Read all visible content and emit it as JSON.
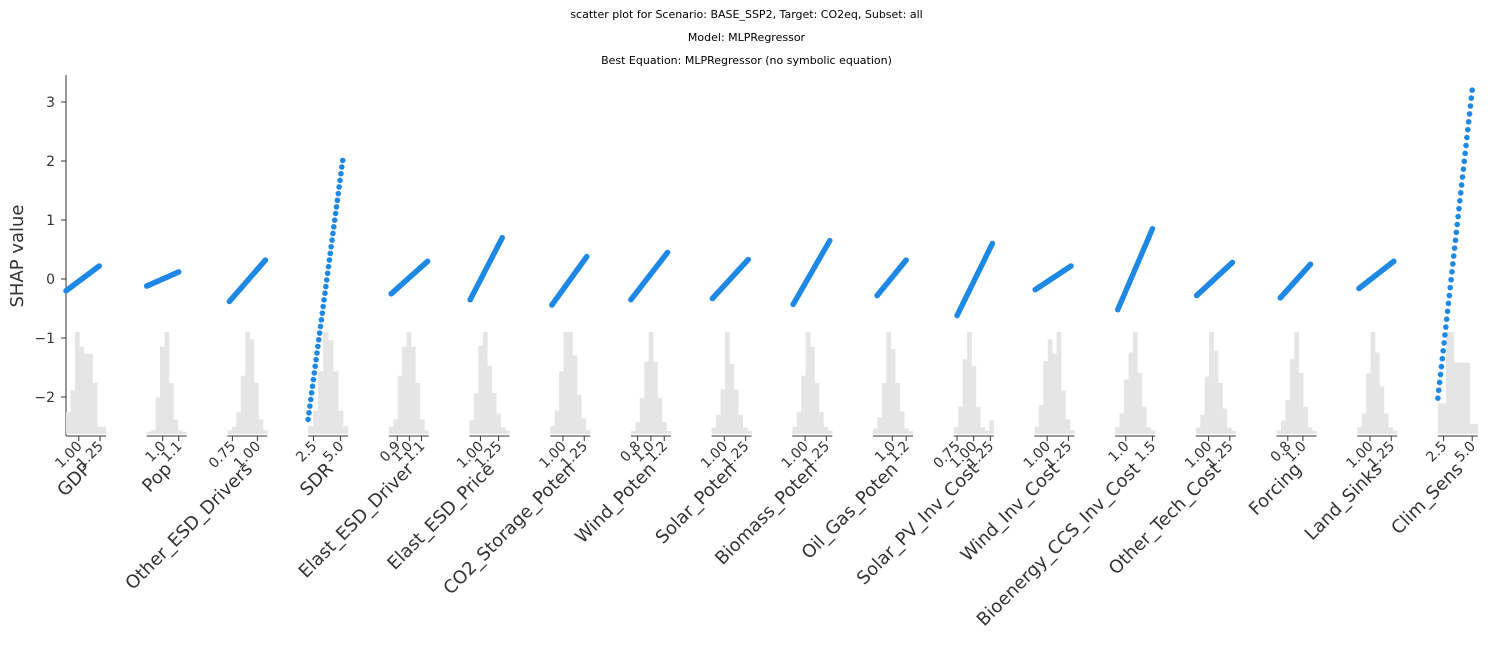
{
  "titles": {
    "line1": "scatter plot for Scenario: BASE_SSP2, Target: CO2eq, Subset: all",
    "line2": "Model: MLPRegressor",
    "line3": "Best Equation: MLPRegressor (no symbolic equation)"
  },
  "colors": {
    "points": "#1e88e5",
    "hist": "#e5e5e5",
    "axis": "#333333"
  },
  "chart_data": {
    "type": "scatter",
    "title": "scatter plot for Scenario: BASE_SSP2, Target: CO2eq, Subset: all",
    "subtitle": [
      "Model: MLPRegressor",
      "Best Equation: MLPRegressor (no symbolic equation)"
    ],
    "ylabel": "SHAP value",
    "ylim": [
      -2.65,
      3.45
    ],
    "yticks": [
      -2,
      -1,
      0,
      1,
      2,
      3
    ],
    "yticklabels": [
      "−2",
      "−1",
      "0",
      "1",
      "2",
      "3"
    ],
    "grid": false,
    "panels": [
      {
        "feature": "GDP",
        "xlim": [
          0.85,
          1.32
        ],
        "ticks": [
          1.0,
          1.25
        ],
        "ticklabels": [
          "1.00",
          "1.25"
        ],
        "shap_range": [
          -0.2,
          0.22
        ],
        "x_range": [
          0.85,
          1.24
        ],
        "hist": [
          3,
          6,
          14,
          12,
          11,
          11,
          7,
          1,
          1
        ]
      },
      {
        "feature": "Pop",
        "xlim": [
          0.9,
          1.15
        ],
        "ticks": [
          1.0,
          1.1
        ],
        "ticklabels": [
          "1.0",
          "1.1"
        ],
        "shap_range": [
          -0.12,
          0.12
        ],
        "x_range": [
          0.9,
          1.1
        ],
        "hist": [
          0.3,
          0.5,
          5,
          12,
          14,
          7,
          2,
          0.5,
          0.3
        ]
      },
      {
        "feature": "Other_ESD_Drivers",
        "xlim": [
          0.7,
          1.1
        ],
        "ticks": [
          0.75,
          1.0
        ],
        "ticklabels": [
          "0.75",
          "1.00"
        ],
        "shap_range": [
          -0.38,
          0.32
        ],
        "x_range": [
          0.72,
          1.08
        ],
        "hist": [
          0.5,
          1,
          3,
          8,
          14,
          13,
          7,
          2,
          0.5
        ]
      },
      {
        "feature": "SDR",
        "xlim": [
          2.0,
          5.7
        ],
        "ticks": [
          2.5,
          5.0
        ],
        "ticklabels": [
          "2.5",
          "5.0"
        ],
        "shap_range": [
          -2.38,
          2.01
        ],
        "x_range": [
          2.0,
          5.2
        ],
        "hist": [
          1,
          3,
          8,
          13,
          12,
          8,
          3,
          1
        ]
      },
      {
        "feature": "Elast_ESD_Driver",
        "xlim": [
          0.83,
          1.16
        ],
        "ticks": [
          0.9,
          1.0,
          1.1
        ],
        "ticklabels": [
          "0.9",
          "1.0",
          "1.1"
        ],
        "shap_range": [
          -0.25,
          0.3
        ],
        "x_range": [
          0.85,
          1.15
        ],
        "hist": [
          1,
          2,
          8,
          12,
          14,
          12,
          7,
          2,
          0.5
        ]
      },
      {
        "feature": "Elast_ESD_Price",
        "xlim": [
          0.85,
          1.4
        ],
        "ticks": [
          1.0,
          1.25
        ],
        "ticklabels": [
          "1.00",
          "1.25"
        ],
        "shap_range": [
          -0.35,
          0.7
        ],
        "x_range": [
          0.86,
          1.3
        ],
        "hist": [
          2,
          6,
          13,
          15,
          10,
          6,
          3,
          1,
          0.5
        ]
      },
      {
        "feature": "CO2_Storage_Poten",
        "xlim": [
          0.85,
          1.32
        ],
        "ticks": [
          1.0,
          1.25
        ],
        "ticklabels": [
          "1.00",
          "1.25"
        ],
        "shap_range": [
          -0.44,
          0.38
        ],
        "x_range": [
          0.87,
          1.28
        ],
        "hist": [
          1,
          3,
          8,
          13,
          13,
          10,
          5,
          2,
          0.5
        ]
      },
      {
        "feature": "Wind_Poten",
        "xlim": [
          0.7,
          1.3
        ],
        "ticks": [
          0.8,
          1.0,
          1.2
        ],
        "ticklabels": [
          "0.8",
          "1.0",
          "1.2"
        ],
        "shap_range": [
          -0.35,
          0.45
        ],
        "x_range": [
          0.7,
          1.25
        ],
        "hist": [
          0.5,
          2,
          6,
          12,
          17,
          12,
          6,
          2,
          0.5
        ]
      },
      {
        "feature": "Solar_Poten",
        "xlim": [
          0.85,
          1.32
        ],
        "ticks": [
          1.0,
          1.25
        ],
        "ticklabels": [
          "1.00",
          "1.25"
        ],
        "shap_range": [
          -0.33,
          0.33
        ],
        "x_range": [
          0.86,
          1.28
        ],
        "hist": [
          1,
          3,
          7,
          16,
          11,
          7,
          3,
          1,
          0.5
        ]
      },
      {
        "feature": "Biomass_Poten",
        "xlim": [
          0.85,
          1.32
        ],
        "ticks": [
          1.0,
          1.25
        ],
        "ticklabels": [
          "1.00",
          "1.25"
        ],
        "shap_range": [
          -0.43,
          0.65
        ],
        "x_range": [
          0.86,
          1.29
        ],
        "hist": [
          1,
          3,
          8,
          14,
          12,
          7,
          3,
          1,
          0.5
        ]
      },
      {
        "feature": "Oil_Gas_Poten",
        "xlim": [
          0.72,
          1.3
        ],
        "ticks": [
          1.0,
          1.2
        ],
        "ticklabels": [
          "1.0",
          "1.2"
        ],
        "shap_range": [
          -0.28,
          0.32
        ],
        "x_range": [
          0.78,
          1.2
        ],
        "hist": [
          1,
          3,
          9,
          18,
          15,
          9,
          4,
          1,
          0.5
        ]
      },
      {
        "feature": "Solar_PV_Inv_Cost",
        "xlim": [
          0.7,
          1.3
        ],
        "ticks": [
          0.75,
          1.0,
          1.25
        ],
        "ticklabels": [
          "0.75",
          "1.00",
          "1.25"
        ],
        "shap_range": [
          -0.62,
          0.6
        ],
        "x_range": [
          0.75,
          1.28
        ],
        "hist": [
          1,
          4,
          11,
          15,
          10,
          4,
          1,
          0.5,
          2
        ]
      },
      {
        "feature": "Wind_Inv_Cost",
        "xlim": [
          0.85,
          1.32
        ],
        "ticks": [
          1.0,
          1.25
        ],
        "ticklabels": [
          "1.00",
          "1.25"
        ],
        "shap_range": [
          -0.18,
          0.22
        ],
        "x_range": [
          0.86,
          1.28
        ],
        "hist": [
          1,
          4,
          10,
          13,
          11,
          14,
          6,
          2,
          0.5
        ]
      },
      {
        "feature": "Bioenergy_CCS_Inv_Cost",
        "xlim": [
          0.8,
          1.55
        ],
        "ticks": [
          1.0,
          1.5
        ],
        "ticklabels": [
          "1.0",
          "1.5"
        ],
        "shap_range": [
          -0.52,
          0.85
        ],
        "x_range": [
          0.85,
          1.5
        ],
        "hist": [
          1,
          3,
          8,
          12,
          15,
          9,
          4,
          1,
          0.5
        ]
      },
      {
        "feature": "Other_Tech_Cost",
        "xlim": [
          0.85,
          1.32
        ],
        "ticks": [
          1.0,
          1.25
        ],
        "ticklabels": [
          "1.00",
          "1.25"
        ],
        "shap_range": [
          -0.28,
          0.28
        ],
        "x_range": [
          0.86,
          1.28
        ],
        "hist": [
          1,
          3,
          9,
          16,
          13,
          8,
          4,
          1,
          0.5
        ]
      },
      {
        "feature": "Forcing",
        "xlim": [
          0.65,
          1.18
        ],
        "ticks": [
          0.8,
          1.0
        ],
        "ticklabels": [
          "0.8",
          "1.0"
        ],
        "shap_range": [
          -0.32,
          0.25
        ],
        "x_range": [
          0.7,
          1.1
        ],
        "hist": [
          0.5,
          2,
          5,
          11,
          15,
          9,
          4,
          1,
          0.5
        ]
      },
      {
        "feature": "Land_Sinks",
        "xlim": [
          0.85,
          1.32
        ],
        "ticks": [
          1.0,
          1.25
        ],
        "ticklabels": [
          "1.00",
          "1.25"
        ],
        "shap_range": [
          -0.16,
          0.3
        ],
        "x_range": [
          0.87,
          1.28
        ],
        "hist": [
          1,
          3,
          9,
          15,
          12,
          7,
          3,
          1,
          0.5
        ]
      },
      {
        "feature": "Clim_Sens",
        "xlim": [
          2.0,
          5.5
        ],
        "ticks": [
          2.5,
          5.0
        ],
        "ticklabels": [
          "2.5",
          "5.0"
        ],
        "shap_range": [
          -2.02,
          3.2
        ],
        "x_range": [
          2.0,
          5.0
        ],
        "hist": [
          6,
          20,
          14,
          14,
          2
        ]
      }
    ]
  }
}
